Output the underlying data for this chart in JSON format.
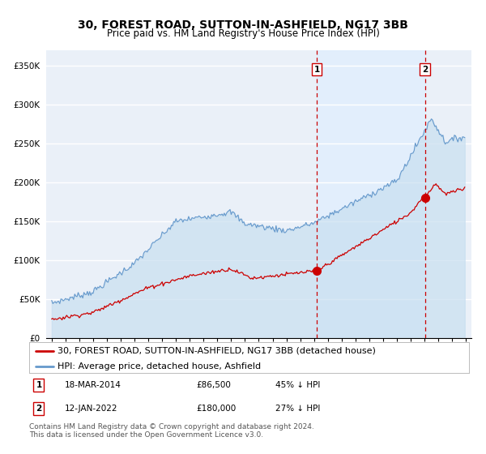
{
  "title": "30, FOREST ROAD, SUTTON-IN-ASHFIELD, NG17 3BB",
  "subtitle": "Price paid vs. HM Land Registry's House Price Index (HPI)",
  "ylim": [
    0,
    370000
  ],
  "yticks": [
    0,
    50000,
    100000,
    150000,
    200000,
    250000,
    300000,
    350000
  ],
  "ytick_labels": [
    "£0",
    "£50K",
    "£100K",
    "£150K",
    "£200K",
    "£250K",
    "£300K",
    "£350K"
  ],
  "xlim_start": 1994.6,
  "xlim_end": 2025.4,
  "plot_bg_color": "#eaf0f8",
  "grid_color": "#ffffff",
  "sale1_date": 2014.21,
  "sale1_price": 86500,
  "sale2_date": 2022.04,
  "sale2_price": 180000,
  "property_color": "#cc0000",
  "hpi_color": "#6699cc",
  "hpi_fill_color": "#d0e4f4",
  "sale_shade_color": "#ddeeff",
  "legend_property": "30, FOREST ROAD, SUTTON-IN-ASHFIELD, NG17 3BB (detached house)",
  "legend_hpi": "HPI: Average price, detached house, Ashfield",
  "footer": "Contains HM Land Registry data © Crown copyright and database right 2024.\nThis data is licensed under the Open Government Licence v3.0.",
  "title_fontsize": 10,
  "subtitle_fontsize": 8.5,
  "tick_fontsize": 7.5,
  "legend_fontsize": 8,
  "footer_fontsize": 6.5
}
